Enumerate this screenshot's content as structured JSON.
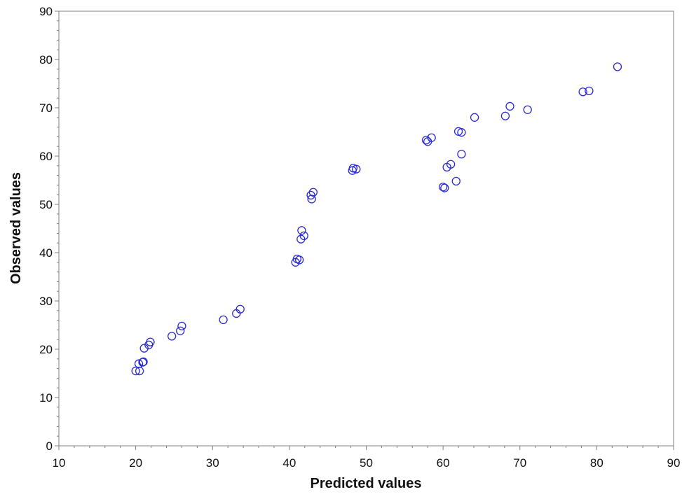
{
  "chart_data": {
    "type": "scatter",
    "title": "",
    "xlabel": "Predicted values",
    "ylabel": "Observed values",
    "xlim": [
      10,
      90
    ],
    "ylim": [
      0,
      90
    ],
    "x_ticks": [
      10,
      20,
      30,
      40,
      50,
      60,
      70,
      80,
      90
    ],
    "y_ticks": [
      0,
      10,
      20,
      30,
      40,
      50,
      60,
      70,
      80,
      90
    ],
    "minor_tick_step": 2,
    "grid": false,
    "legend": "none",
    "marker": "open-circle",
    "marker_color": "#2a2ad6",
    "points": [
      {
        "x": 20.0,
        "y": 15.5
      },
      {
        "x": 20.5,
        "y": 15.5
      },
      {
        "x": 20.4,
        "y": 17.0
      },
      {
        "x": 20.9,
        "y": 17.3
      },
      {
        "x": 21.0,
        "y": 17.4
      },
      {
        "x": 21.1,
        "y": 20.2
      },
      {
        "x": 21.7,
        "y": 20.9
      },
      {
        "x": 21.9,
        "y": 21.5
      },
      {
        "x": 24.7,
        "y": 22.7
      },
      {
        "x": 25.8,
        "y": 23.8
      },
      {
        "x": 26.0,
        "y": 24.8
      },
      {
        "x": 31.4,
        "y": 26.1
      },
      {
        "x": 33.1,
        "y": 27.4
      },
      {
        "x": 33.6,
        "y": 28.3
      },
      {
        "x": 40.8,
        "y": 38.0
      },
      {
        "x": 41.0,
        "y": 38.7
      },
      {
        "x": 41.3,
        "y": 38.5
      },
      {
        "x": 41.5,
        "y": 42.8
      },
      {
        "x": 41.6,
        "y": 44.6
      },
      {
        "x": 41.9,
        "y": 43.5
      },
      {
        "x": 42.8,
        "y": 51.9
      },
      {
        "x": 42.9,
        "y": 51.1
      },
      {
        "x": 43.1,
        "y": 52.5
      },
      {
        "x": 48.2,
        "y": 57.0
      },
      {
        "x": 48.3,
        "y": 57.5
      },
      {
        "x": 48.7,
        "y": 57.3
      },
      {
        "x": 57.8,
        "y": 63.3
      },
      {
        "x": 58.0,
        "y": 63.0
      },
      {
        "x": 58.5,
        "y": 63.8
      },
      {
        "x": 60.0,
        "y": 53.6
      },
      {
        "x": 60.2,
        "y": 53.4
      },
      {
        "x": 60.5,
        "y": 57.7
      },
      {
        "x": 61.0,
        "y": 58.3
      },
      {
        "x": 61.7,
        "y": 54.8
      },
      {
        "x": 62.0,
        "y": 65.1
      },
      {
        "x": 62.4,
        "y": 64.9
      },
      {
        "x": 62.4,
        "y": 60.4
      },
      {
        "x": 64.1,
        "y": 68.0
      },
      {
        "x": 68.1,
        "y": 68.3
      },
      {
        "x": 68.7,
        "y": 70.3
      },
      {
        "x": 71.0,
        "y": 69.6
      },
      {
        "x": 78.2,
        "y": 73.3
      },
      {
        "x": 79.0,
        "y": 73.5
      },
      {
        "x": 82.7,
        "y": 78.5
      }
    ]
  }
}
